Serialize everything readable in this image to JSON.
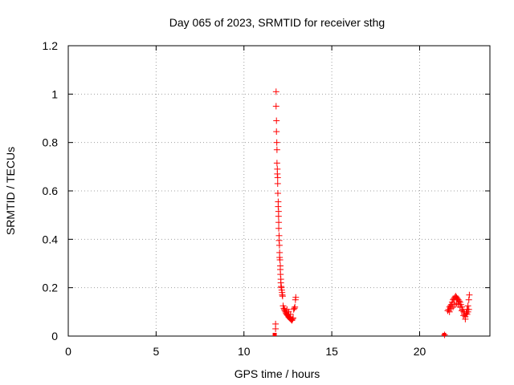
{
  "chart_data": {
    "type": "scatter",
    "title": "Day 065 of 2023, SRMTID for receiver sthg",
    "xlabel": "GPS time / hours",
    "ylabel": "SRMTID / TECUs",
    "xlim": [
      0,
      24
    ],
    "ylim": [
      0,
      1.2
    ],
    "grid": true,
    "x_ticks": [
      0,
      5,
      10,
      15,
      20
    ],
    "x_tick_labels": [
      "0",
      "5",
      "10",
      "15",
      "20"
    ],
    "y_ticks": [
      0,
      0.2,
      0.4,
      0.6,
      0.8,
      1.0,
      1.2
    ],
    "y_tick_labels": [
      "0",
      "0.2",
      "0.4",
      "0.6",
      "0.8",
      "1",
      "1.2"
    ],
    "series": [
      {
        "name": "SRMTID",
        "marker": "plus",
        "color": "#ff0000",
        "points": [
          [
            11.83,
            1.01
          ],
          [
            11.83,
            0.95
          ],
          [
            11.85,
            0.89
          ],
          [
            11.85,
            0.845
          ],
          [
            11.87,
            0.8
          ],
          [
            11.88,
            0.77
          ],
          [
            11.88,
            0.715
          ],
          [
            11.9,
            0.69
          ],
          [
            11.9,
            0.67
          ],
          [
            11.92,
            0.655
          ],
          [
            11.92,
            0.63
          ],
          [
            11.93,
            0.59
          ],
          [
            11.95,
            0.555
          ],
          [
            11.95,
            0.535
          ],
          [
            11.97,
            0.515
          ],
          [
            11.97,
            0.495
          ],
          [
            11.98,
            0.47
          ],
          [
            11.98,
            0.445
          ],
          [
            12.0,
            0.415
          ],
          [
            12.0,
            0.395
          ],
          [
            12.02,
            0.375
          ],
          [
            12.03,
            0.345
          ],
          [
            12.03,
            0.325
          ],
          [
            12.05,
            0.315
          ],
          [
            12.07,
            0.29
          ],
          [
            12.07,
            0.275
          ],
          [
            12.08,
            0.255
          ],
          [
            12.1,
            0.235
          ],
          [
            12.1,
            0.22
          ],
          [
            12.12,
            0.205
          ],
          [
            12.13,
            0.2
          ],
          [
            12.15,
            0.19
          ],
          [
            12.17,
            0.18
          ],
          [
            12.18,
            0.17
          ],
          [
            12.2,
            0.165
          ],
          [
            12.23,
            0.125
          ],
          [
            12.27,
            0.115
          ],
          [
            12.3,
            0.11
          ],
          [
            12.33,
            0.105
          ],
          [
            12.37,
            0.1
          ],
          [
            12.4,
            0.095
          ],
          [
            12.43,
            0.09
          ],
          [
            12.47,
            0.088
          ],
          [
            12.5,
            0.085
          ],
          [
            12.53,
            0.08
          ],
          [
            12.57,
            0.078
          ],
          [
            12.6,
            0.075
          ],
          [
            12.63,
            0.072
          ],
          [
            12.67,
            0.07
          ],
          [
            12.7,
            0.068
          ],
          [
            12.73,
            0.065
          ],
          [
            12.77,
            0.07
          ],
          [
            12.8,
            0.075
          ],
          [
            12.83,
            0.11
          ],
          [
            12.87,
            0.115
          ],
          [
            12.9,
            0.12
          ],
          [
            12.93,
            0.15
          ],
          [
            12.95,
            0.16
          ],
          [
            12.45,
            0.11
          ],
          [
            12.55,
            0.1
          ],
          [
            12.65,
            0.09
          ],
          [
            11.8,
            0.05
          ],
          [
            11.8,
            0.03
          ],
          [
            11.75,
            0.0
          ],
          [
            21.4,
            0.0
          ],
          [
            21.42,
            0.005
          ],
          [
            21.6,
            0.105
          ],
          [
            21.65,
            0.11
          ],
          [
            21.7,
            0.12
          ],
          [
            21.75,
            0.125
          ],
          [
            21.8,
            0.13
          ],
          [
            21.85,
            0.14
          ],
          [
            21.9,
            0.15
          ],
          [
            21.95,
            0.155
          ],
          [
            22.0,
            0.16
          ],
          [
            22.05,
            0.165
          ],
          [
            22.1,
            0.16
          ],
          [
            22.15,
            0.155
          ],
          [
            22.2,
            0.15
          ],
          [
            22.25,
            0.145
          ],
          [
            22.3,
            0.14
          ],
          [
            22.35,
            0.13
          ],
          [
            22.4,
            0.12
          ],
          [
            22.45,
            0.11
          ],
          [
            22.5,
            0.1
          ],
          [
            22.55,
            0.09
          ],
          [
            22.6,
            0.08
          ],
          [
            22.65,
            0.095
          ],
          [
            22.7,
            0.11
          ],
          [
            22.75,
            0.125
          ],
          [
            22.8,
            0.15
          ],
          [
            22.83,
            0.17
          ],
          [
            21.7,
            0.1
          ],
          [
            21.8,
            0.115
          ],
          [
            21.9,
            0.12
          ],
          [
            22.0,
            0.13
          ],
          [
            22.1,
            0.135
          ],
          [
            22.2,
            0.13
          ],
          [
            22.3,
            0.12
          ],
          [
            22.4,
            0.105
          ],
          [
            22.5,
            0.085
          ],
          [
            22.6,
            0.07
          ],
          [
            22.7,
            0.09
          ],
          [
            22.75,
            0.1
          ],
          [
            22.8,
            0.11
          ]
        ]
      }
    ]
  }
}
